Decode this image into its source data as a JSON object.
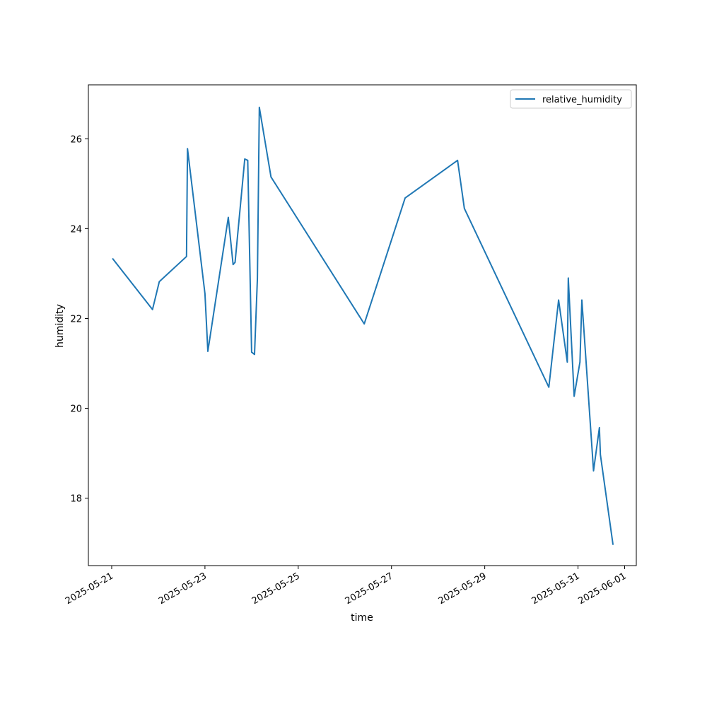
{
  "chart_data": {
    "type": "line",
    "title": "",
    "xlabel": "time",
    "ylabel": "humidity",
    "x_scale": "date",
    "xlim": [
      "2025-05-20T12:00",
      "2025-06-01T06:00"
    ],
    "ylim": [
      16.5,
      27.2
    ],
    "x_ticks": [
      "2025-05-21",
      "2025-05-23",
      "2025-05-25",
      "2025-05-27",
      "2025-05-29",
      "2025-05-31",
      "2025-06-01"
    ],
    "y_ticks": [
      18,
      20,
      22,
      24,
      26
    ],
    "y_tick_labels": [
      "18",
      "20",
      "22",
      "24",
      "26"
    ],
    "grid": false,
    "legend": {
      "position": "top-right",
      "entries": [
        "relative_humidity"
      ]
    },
    "series": [
      {
        "name": "relative_humidity",
        "color": "#1f77b4",
        "x": [
          "2025-05-21T00:30",
          "2025-05-21T21:00",
          "2025-05-22T00:30",
          "2025-05-22T14:30",
          "2025-05-22T15:00",
          "2025-05-23T00:00",
          "2025-05-23T01:30",
          "2025-05-23T12:00",
          "2025-05-23T14:30",
          "2025-05-23T15:30",
          "2025-05-23T20:30",
          "2025-05-23T22:00",
          "2025-05-24T00:00",
          "2025-05-24T01:30",
          "2025-05-24T03:00",
          "2025-05-24T04:00",
          "2025-05-24T10:00",
          "2025-05-26T10:00",
          "2025-05-27T07:00",
          "2025-05-28T10:00",
          "2025-05-28T13:30",
          "2025-05-30T09:00",
          "2025-05-30T14:00",
          "2025-05-30T18:30",
          "2025-05-30T19:00",
          "2025-05-30T22:00",
          "2025-05-31T01:00",
          "2025-05-31T02:00",
          "2025-05-31T08:00",
          "2025-05-31T11:00",
          "2025-05-31T11:30",
          "2025-05-31T18:00"
        ],
        "y": [
          23.33,
          22.2,
          22.82,
          23.38,
          25.78,
          22.55,
          21.27,
          24.25,
          23.2,
          23.25,
          25.55,
          25.52,
          21.25,
          21.2,
          22.9,
          26.7,
          25.15,
          21.88,
          24.68,
          25.52,
          24.45,
          20.47,
          22.41,
          21.03,
          22.9,
          20.27,
          21.03,
          22.41,
          18.61,
          19.57,
          18.97,
          16.97
        ]
      }
    ]
  }
}
